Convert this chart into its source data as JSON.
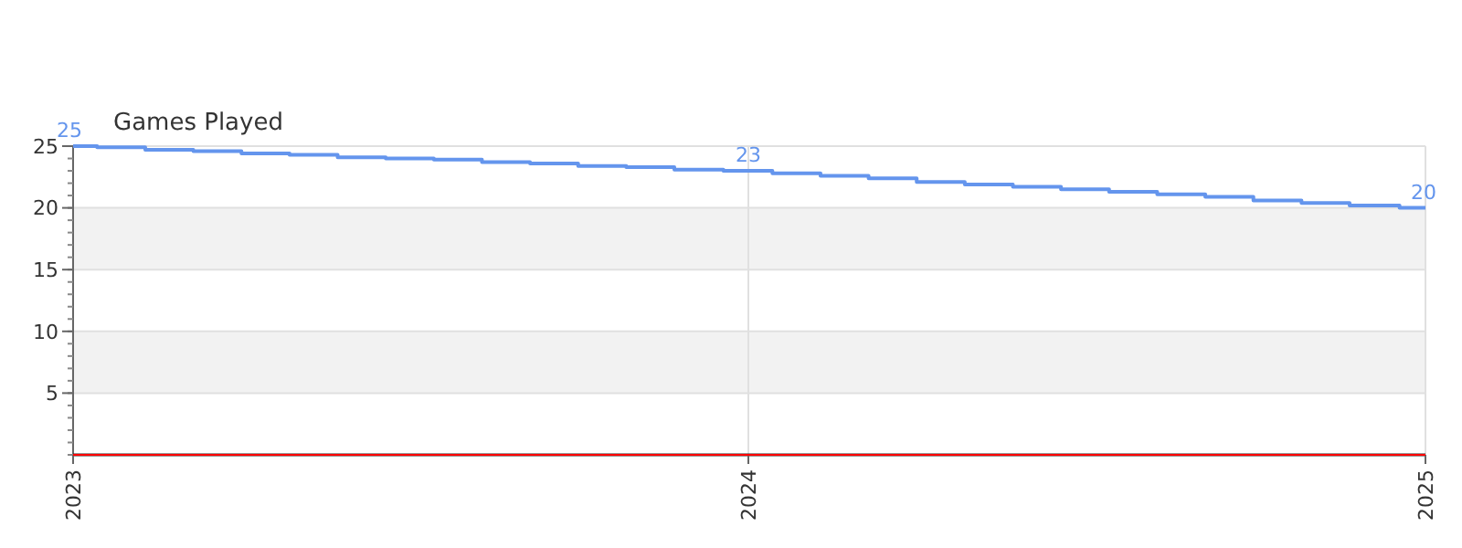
{
  "chart_data": {
    "type": "step",
    "title": "Games Played",
    "x": [
      "2023-01-01",
      "2023-01-27",
      "2023-02-22",
      "2023-03-20",
      "2023-04-15",
      "2023-05-11",
      "2023-06-06",
      "2023-07-02",
      "2023-07-28",
      "2023-08-23",
      "2023-09-18",
      "2023-10-14",
      "2023-11-09",
      "2023-12-05",
      "2024-01-01",
      "2024-01-27",
      "2024-02-22",
      "2024-03-19",
      "2024-04-14",
      "2024-05-10",
      "2024-06-05",
      "2024-07-01",
      "2024-07-27",
      "2024-08-22",
      "2024-09-17",
      "2024-10-13",
      "2024-11-08",
      "2024-12-04",
      "2025-01-01"
    ],
    "series": [
      {
        "color": "#6495ed",
        "values": [
          25,
          24.9,
          24.7,
          24.6,
          24.4,
          24.3,
          24.1,
          24,
          23.9,
          23.7,
          23.6,
          23.4,
          23.3,
          23.1,
          23,
          22.8,
          22.6,
          22.4,
          22.1,
          21.9,
          21.7,
          21.5,
          21.3,
          21.1,
          20.9,
          20.6,
          20.4,
          20.2,
          20
        ],
        "value_labels": [
          "25",
          null,
          null,
          null,
          null,
          null,
          null,
          null,
          null,
          null,
          null,
          null,
          null,
          null,
          "23",
          null,
          null,
          null,
          null,
          null,
          null,
          null,
          null,
          null,
          null,
          null,
          null,
          null,
          "20"
        ]
      }
    ],
    "xlim": [
      "2023-01-01",
      "2025-01-01"
    ],
    "xticks": [
      {
        "value": "2023-01-01",
        "label": "2023"
      },
      {
        "value": "2024-01-01",
        "label": "2024"
      },
      {
        "value": "2025-01-01",
        "label": "2025"
      }
    ],
    "ylim": [
      0,
      25
    ],
    "yticks": [
      5,
      10,
      15,
      20,
      25
    ],
    "grid": true,
    "bands": [
      {
        "axis": "y",
        "from": 5,
        "to": 10,
        "color": "#f2f2f2"
      },
      {
        "axis": "y",
        "from": 15,
        "to": 20,
        "color": "#f2f2f2"
      }
    ],
    "ref_lines": [
      {
        "axis": "y",
        "value": 0,
        "color": "#ff0000"
      }
    ]
  }
}
